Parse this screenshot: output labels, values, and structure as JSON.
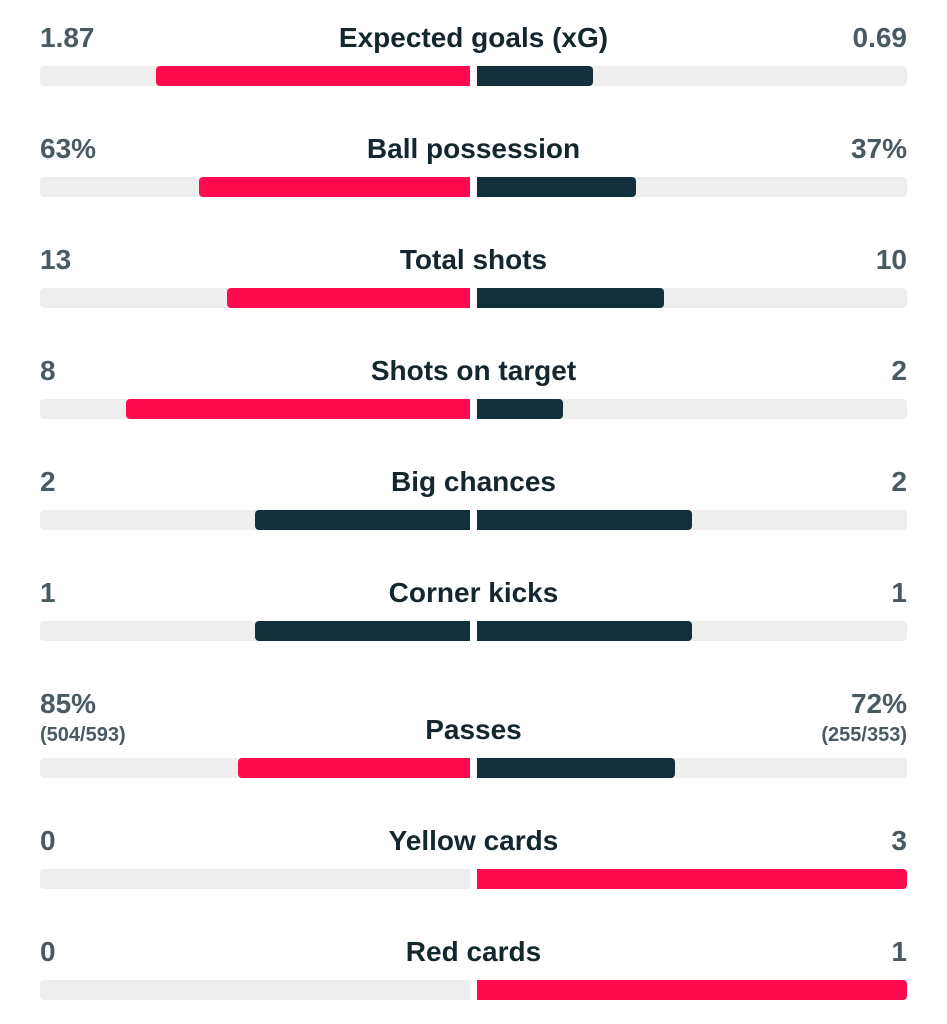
{
  "colors": {
    "leader": "#ff0a4f",
    "neutral": "#11303b",
    "track": "#eeeeee"
  },
  "stats": [
    {
      "label": "Expected goals (xG)",
      "home": "1.87",
      "away": "0.69",
      "home_share": 0.73,
      "away_share": 0.27,
      "home_color": "leader",
      "away_color": "neutral"
    },
    {
      "label": "Ball possession",
      "home": "63%",
      "away": "37%",
      "home_share": 0.63,
      "away_share": 0.37,
      "home_color": "leader",
      "away_color": "neutral"
    },
    {
      "label": "Total shots",
      "home": "13",
      "away": "10",
      "home_share": 0.565,
      "away_share": 0.435,
      "home_color": "leader",
      "away_color": "neutral"
    },
    {
      "label": "Shots on target",
      "home": "8",
      "away": "2",
      "home_share": 0.8,
      "away_share": 0.2,
      "home_color": "leader",
      "away_color": "neutral"
    },
    {
      "label": "Big chances",
      "home": "2",
      "away": "2",
      "home_share": 0.5,
      "away_share": 0.5,
      "home_color": "neutral",
      "away_color": "neutral"
    },
    {
      "label": "Corner kicks",
      "home": "1",
      "away": "1",
      "home_share": 0.5,
      "away_share": 0.5,
      "home_color": "neutral",
      "away_color": "neutral"
    },
    {
      "label": "Passes",
      "home": "85%",
      "away": "72%",
      "home_sub": "(504/593)",
      "away_sub": "(255/353)",
      "home_share": 0.54,
      "away_share": 0.46,
      "home_color": "leader",
      "away_color": "neutral"
    },
    {
      "label": "Yellow cards",
      "home": "0",
      "away": "3",
      "home_share": 0.0,
      "away_share": 1.0,
      "home_color": "neutral",
      "away_color": "leader"
    },
    {
      "label": "Red cards",
      "home": "0",
      "away": "1",
      "home_share": 0.0,
      "away_share": 1.0,
      "home_color": "neutral",
      "away_color": "leader"
    }
  ]
}
